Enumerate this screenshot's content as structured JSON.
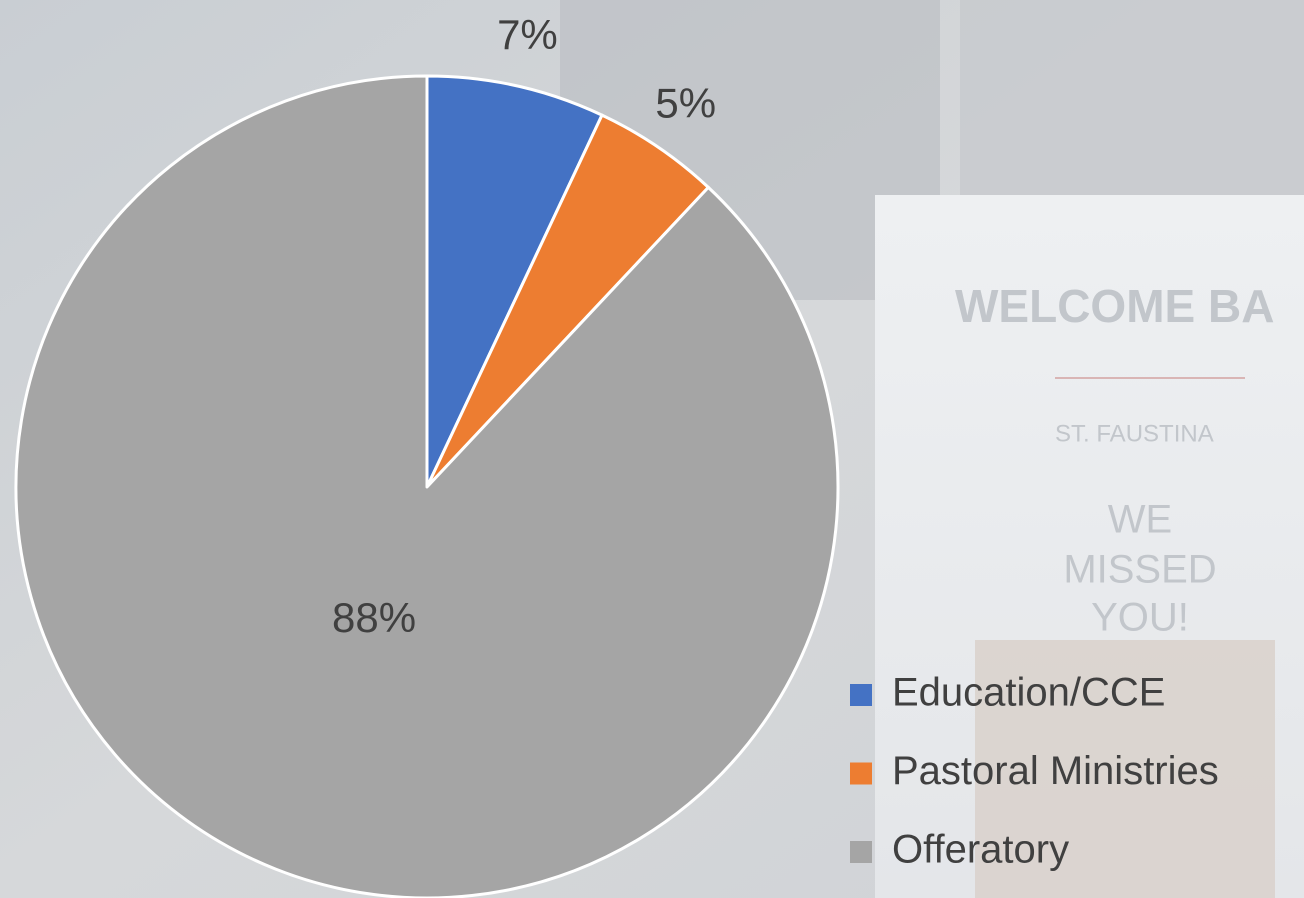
{
  "chart_data": {
    "type": "pie",
    "categories": [
      "Education/CCE",
      "Pastoral Ministries",
      "Offeratory"
    ],
    "values": [
      7,
      5,
      88
    ],
    "value_labels": [
      "7%",
      "5%",
      "88%"
    ],
    "colors": [
      "#4472c4",
      "#ed7d31",
      "#a5a5a5"
    ],
    "legend": "lower right"
  },
  "background_text": [
    "WELCOME BA",
    "ST. FAUSTINA",
    "WE",
    "MISSED",
    "YOU!"
  ]
}
